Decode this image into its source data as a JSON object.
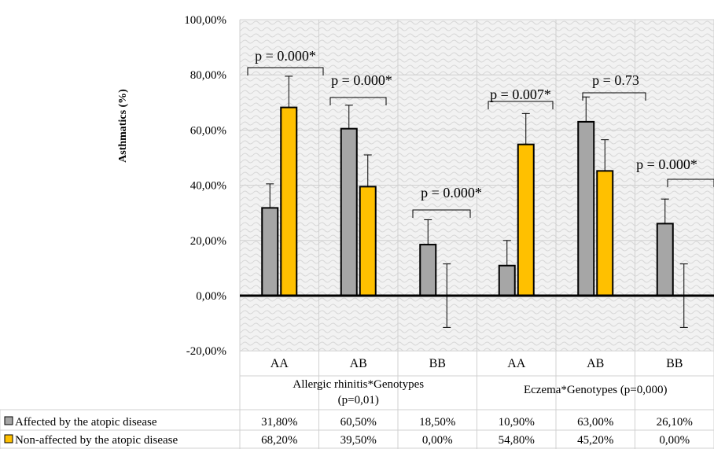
{
  "chart_data": {
    "type": "bar",
    "ylabel": "Asthmatics (%)",
    "ylim": [
      -20,
      100
    ],
    "yticks": [
      "-20,00%",
      "0,00%",
      "20,00%",
      "40,00%",
      "60,00%",
      "80,00%",
      "100,00%"
    ],
    "grid": true,
    "groups": [
      {
        "label": "Allergic rhinitis*Genotypes (p=0,01)",
        "categories": [
          "AA",
          "AB",
          "BB"
        ]
      },
      {
        "label": "Eczema*Genotypes (p=0,000)",
        "categories": [
          "AA",
          "AB",
          "BB"
        ]
      }
    ],
    "categories": [
      "AA",
      "AB",
      "BB",
      "AA",
      "AB",
      "BB"
    ],
    "series": [
      {
        "name": "Affected by the atopic disease",
        "color": "#a6a6a6",
        "values": [
          31.8,
          60.5,
          18.5,
          10.9,
          63.0,
          26.1
        ],
        "labels": [
          "31,80%",
          "60,50%",
          "18,50%",
          "10,90%",
          "63,00%",
          "26,10%"
        ],
        "err_low": [
          22.5,
          51.5,
          9.5,
          1.5,
          54.0,
          17.5
        ],
        "err_high": [
          40.5,
          69.0,
          27.5,
          20.0,
          72.0,
          35.0
        ]
      },
      {
        "name": "Non-affected by the atopic disease",
        "color": "#ffc000",
        "values": [
          68.2,
          39.5,
          0.0,
          54.8,
          45.2,
          0.0
        ],
        "labels": [
          "68,20%",
          "39,50%",
          "0,00%",
          "54,80%",
          "45,20%",
          "0,00%"
        ],
        "err_low": [
          56.5,
          28.0,
          -11.5,
          43.0,
          33.0,
          -11.5
        ],
        "err_high": [
          79.5,
          51.0,
          11.5,
          66.0,
          56.5,
          11.5
        ]
      }
    ],
    "annotations": [
      "p = 0.000*",
      "p = 0.000*",
      "p = 0.000*",
      "p = 0.007*",
      "p = 0.73",
      "p = 0.000*"
    ]
  }
}
